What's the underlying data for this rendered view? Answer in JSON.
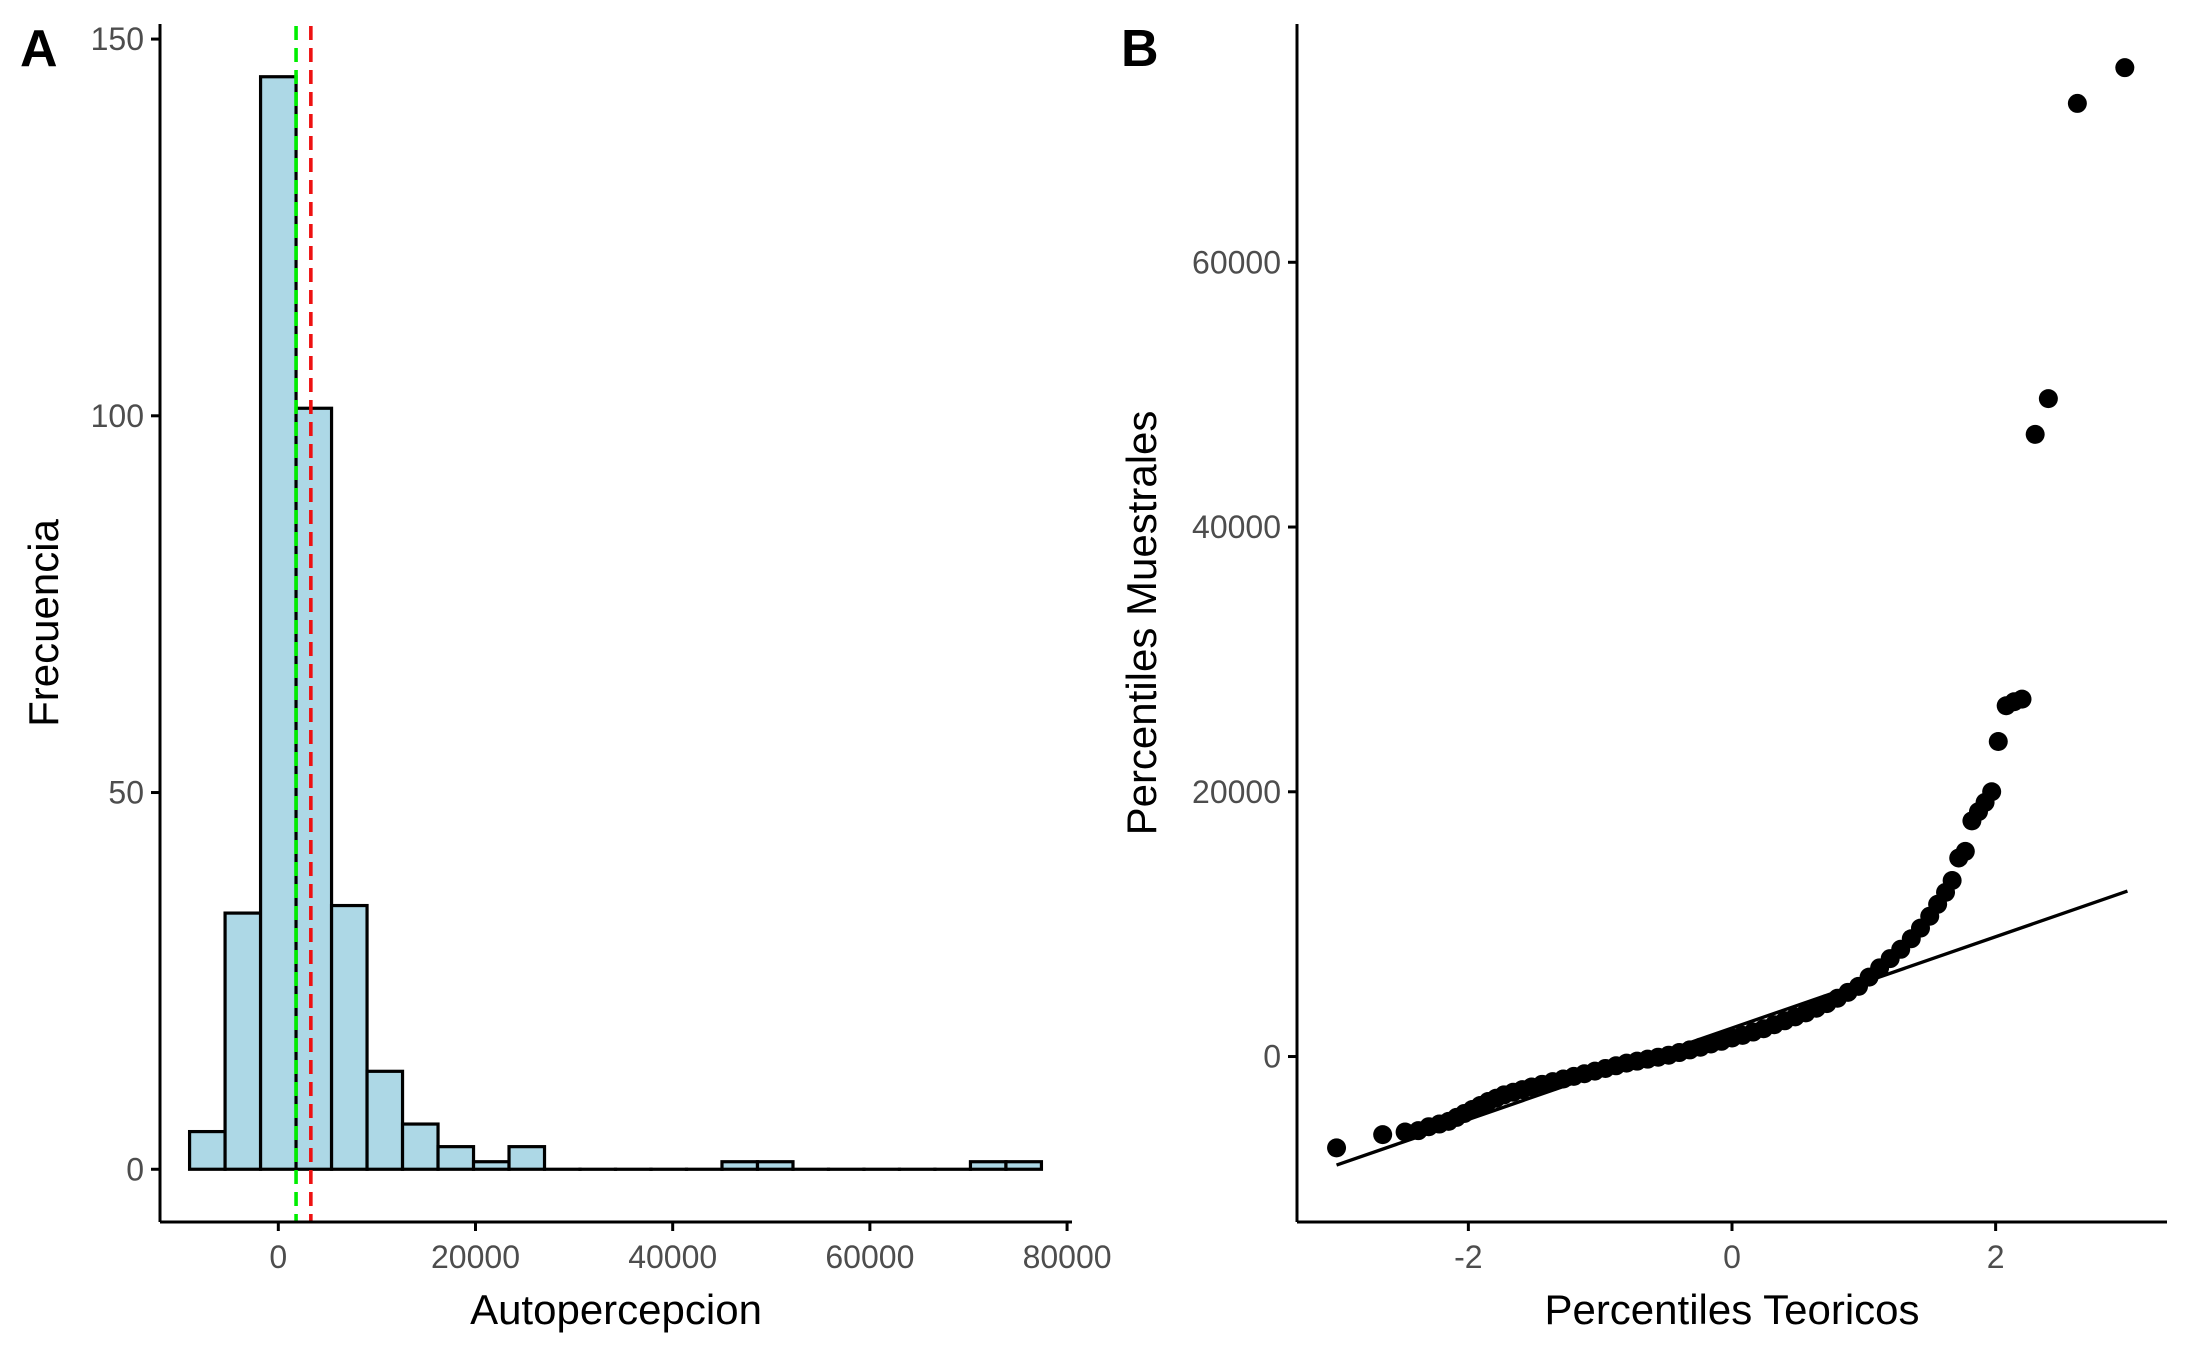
{
  "chart_data": [
    {
      "tag": "A",
      "type": "bar",
      "subtype": "histogram",
      "xlabel": "Autopercepcion",
      "ylabel": "Frecuencia",
      "xlim": [
        -12000,
        80500
      ],
      "ylim": [
        -7,
        152
      ],
      "xticks": [
        0,
        20000,
        40000,
        60000,
        80000
      ],
      "xtick_labels": [
        "0",
        "20000",
        "40000",
        "60000",
        "80000"
      ],
      "yticks": [
        0,
        50,
        100,
        150
      ],
      "ytick_labels": [
        "0",
        "50",
        "100",
        "150"
      ],
      "bin_width": 3600,
      "bins": [
        {
          "x0": -9000,
          "count": 5
        },
        {
          "x0": -5400,
          "count": 34
        },
        {
          "x0": -1800,
          "count": 145
        },
        {
          "x0": 1800,
          "count": 101
        },
        {
          "x0": 5400,
          "count": 35
        },
        {
          "x0": 9000,
          "count": 13
        },
        {
          "x0": 12600,
          "count": 6
        },
        {
          "x0": 16200,
          "count": 3
        },
        {
          "x0": 19800,
          "count": 1
        },
        {
          "x0": 23400,
          "count": 3
        },
        {
          "x0": 27000,
          "count": 0
        },
        {
          "x0": 30600,
          "count": 0
        },
        {
          "x0": 34200,
          "count": 0
        },
        {
          "x0": 37800,
          "count": 0
        },
        {
          "x0": 41400,
          "count": 0
        },
        {
          "x0": 45000,
          "count": 1
        },
        {
          "x0": 48600,
          "count": 1
        },
        {
          "x0": 52200,
          "count": 0
        },
        {
          "x0": 55800,
          "count": 0
        },
        {
          "x0": 59400,
          "count": 0
        },
        {
          "x0": 63000,
          "count": 0
        },
        {
          "x0": 66600,
          "count": 0
        },
        {
          "x0": 70200,
          "count": 1
        },
        {
          "x0": 73800,
          "count": 1
        }
      ],
      "fill_color": "#add8e6",
      "edge_color": "#000000",
      "reference_lines": [
        {
          "x": 1800,
          "color": "#00ee00",
          "style": "dashed"
        },
        {
          "x": 3300,
          "color": "#ee1111",
          "style": "dashed"
        }
      ],
      "grid": false,
      "legend": "none"
    },
    {
      "tag": "B",
      "type": "scatter",
      "subtype": "qq-plot",
      "xlabel": "Percentiles Teoricos",
      "ylabel": "Percentiles Muestrales",
      "xlim": [
        -3.3,
        3.3
      ],
      "ylim": [
        -12500,
        78000
      ],
      "xticks": [
        -2,
        0,
        2
      ],
      "xtick_labels": [
        "-2",
        "0",
        "2"
      ],
      "yticks": [
        0,
        20000,
        40000,
        60000
      ],
      "ytick_labels": [
        "0",
        "20000",
        "40000",
        "60000"
      ],
      "reference_line": {
        "x": [
          -3.0,
          3.0
        ],
        "y": [
          -8200,
          12500
        ],
        "color": "#000000"
      },
      "points": {
        "x": [
          -3.0,
          -2.65,
          -2.48,
          -2.38,
          -2.3,
          -2.22,
          -2.15,
          -2.09,
          -2.03,
          -1.97,
          -1.91,
          -1.85,
          -1.79,
          -1.73,
          -1.66,
          -1.59,
          -1.52,
          -1.44,
          -1.36,
          -1.28,
          -1.2,
          -1.12,
          -1.04,
          -0.96,
          -0.88,
          -0.8,
          -0.72,
          -0.64,
          -0.56,
          -0.48,
          -0.4,
          -0.32,
          -0.24,
          -0.16,
          -0.08,
          0.0,
          0.08,
          0.16,
          0.24,
          0.32,
          0.4,
          0.48,
          0.56,
          0.64,
          0.72,
          0.8,
          0.88,
          0.96,
          1.04,
          1.12,
          1.2,
          1.28,
          1.36,
          1.43,
          1.5,
          1.56,
          1.62,
          1.67,
          1.72,
          1.77,
          1.82,
          1.87,
          1.92,
          1.97,
          2.02,
          2.08,
          2.14,
          2.2,
          2.3,
          2.4,
          2.62,
          2.98
        ],
        "y": [
          -6900,
          -5900,
          -5700,
          -5600,
          -5300,
          -5100,
          -4900,
          -4600,
          -4300,
          -4000,
          -3700,
          -3400,
          -3150,
          -2900,
          -2700,
          -2500,
          -2300,
          -2100,
          -1900,
          -1700,
          -1500,
          -1300,
          -1100,
          -900,
          -700,
          -500,
          -350,
          -200,
          -50,
          100,
          300,
          500,
          700,
          950,
          1150,
          1400,
          1600,
          1850,
          2100,
          2400,
          2700,
          3000,
          3300,
          3650,
          4000,
          4400,
          4850,
          5300,
          6000,
          6700,
          7400,
          8100,
          8900,
          9700,
          10600,
          11500,
          12400,
          13300,
          15000,
          15500,
          17800,
          18500,
          19200,
          20000,
          23800,
          26500,
          26800,
          27000,
          47000,
          49700,
          72000,
          74700
        ]
      },
      "grid": false,
      "legend": "none"
    }
  ]
}
